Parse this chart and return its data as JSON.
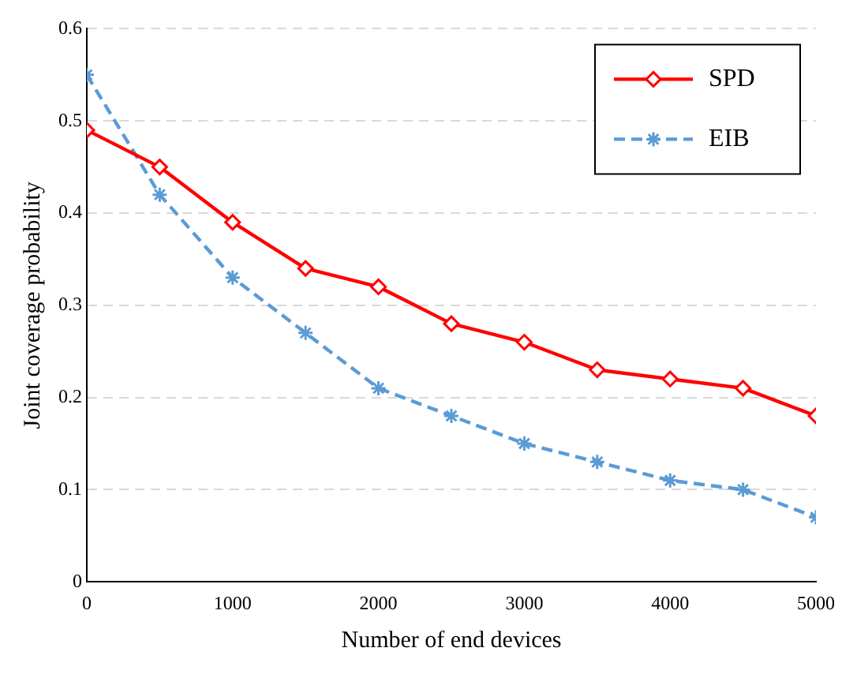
{
  "chart_data": {
    "type": "line",
    "xlabel": "Number of end devices",
    "ylabel": "Joint coverage probability",
    "x": [
      0,
      500,
      1000,
      1500,
      2000,
      2500,
      3000,
      3500,
      4000,
      4500,
      5000
    ],
    "xlim": [
      0,
      5000
    ],
    "xticks": [
      0,
      1000,
      2000,
      3000,
      4000,
      5000
    ],
    "ylim": [
      0,
      0.6
    ],
    "yticks": [
      0,
      0.1,
      0.2,
      0.3,
      0.4,
      0.5,
      0.6
    ],
    "grid": "y",
    "legend": "top right",
    "series": [
      {
        "name": "SPD",
        "color": "#ff0000",
        "marker": "diamond",
        "line_style": "solid",
        "values": [
          0.49,
          0.45,
          0.39,
          0.34,
          0.32,
          0.28,
          0.26,
          0.23,
          0.22,
          0.21,
          0.18
        ]
      },
      {
        "name": "EIB",
        "color": "#5b9bd5",
        "marker": "cross",
        "line_style": "dashed",
        "values": [
          0.55,
          0.42,
          0.33,
          0.27,
          0.21,
          0.18,
          0.15,
          0.13,
          0.11,
          0.1,
          0.07
        ]
      }
    ]
  }
}
